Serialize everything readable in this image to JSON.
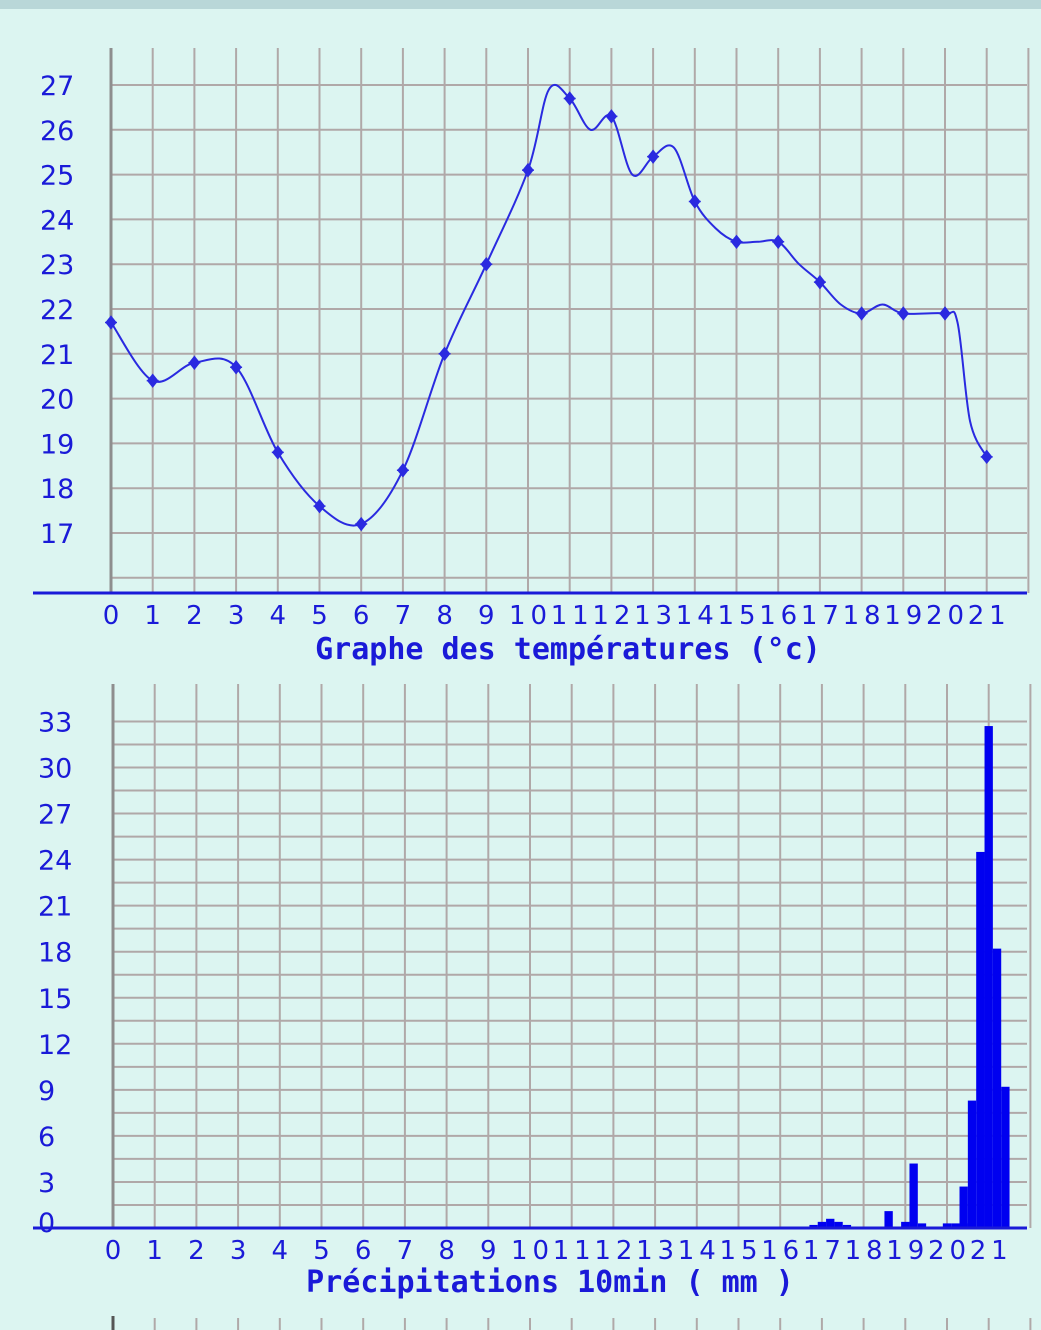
{
  "chart_data": [
    {
      "type": "line",
      "title": "Graphe des températures (°c)",
      "x_ticks": [
        "0",
        "1",
        "2",
        "3",
        "4",
        "5",
        "6",
        "7",
        "8",
        "9",
        "10",
        "11",
        "12",
        "13",
        "14",
        "15",
        "16",
        "17",
        "18",
        "19",
        "20",
        "21"
      ],
      "y_ticks": [
        "17",
        "18",
        "19",
        "20",
        "21",
        "22",
        "23",
        "24",
        "25",
        "26",
        "27"
      ],
      "ylim": [
        16,
        28
      ],
      "xlim": [
        0,
        22
      ],
      "grid": true,
      "series": [
        {
          "color": "#2a2ae0",
          "x": [
            0,
            1,
            2,
            3,
            4,
            5,
            6,
            7,
            8,
            9,
            10,
            10.5,
            11,
            11.5,
            12,
            12.5,
            13,
            13.5,
            14,
            14.5,
            15,
            15.5,
            16,
            16.5,
            17,
            17.5,
            18,
            18.5,
            19,
            20,
            20.3,
            20.6,
            21
          ],
          "y": [
            21.7,
            20.4,
            20.8,
            20.7,
            18.8,
            17.6,
            17.2,
            18.4,
            21.0,
            23.0,
            25.1,
            26.9,
            26.7,
            26.0,
            26.3,
            25.0,
            25.4,
            25.6,
            24.4,
            23.8,
            23.5,
            23.5,
            23.5,
            23.0,
            22.6,
            22.1,
            21.9,
            22.1,
            21.9,
            21.9,
            21.7,
            19.5,
            18.7
          ],
          "marker_x": [
            0,
            1,
            2,
            3,
            4,
            5,
            6,
            7,
            8,
            9,
            10,
            11,
            12,
            13,
            14,
            15,
            16,
            17,
            18,
            19,
            20,
            21
          ],
          "marker_y": [
            21.7,
            20.4,
            20.8,
            20.7,
            18.8,
            17.6,
            17.2,
            18.4,
            21.0,
            23.0,
            25.1,
            26.7,
            26.3,
            25.4,
            24.4,
            23.5,
            23.5,
            22.6,
            21.9,
            21.9,
            21.9,
            18.7
          ]
        }
      ]
    },
    {
      "type": "bar",
      "title": "Précipitations 10min ( mm )",
      "x_ticks": [
        "0",
        "1",
        "2",
        "3",
        "4",
        "5",
        "6",
        "7",
        "8",
        "9",
        "10",
        "11",
        "12",
        "13",
        "14",
        "15",
        "16",
        "17",
        "18",
        "19",
        "20",
        "21"
      ],
      "y_ticks": [
        "0",
        "3",
        "6",
        "9",
        "12",
        "15",
        "18",
        "21",
        "24",
        "27",
        "30",
        "33"
      ],
      "ylim": [
        0,
        34
      ],
      "xlim": [
        0,
        22
      ],
      "grid": true,
      "series": [
        {
          "color": "#0000f0",
          "x": [
            16.8,
            17.0,
            17.2,
            17.4,
            17.6,
            18.6,
            19.0,
            19.2,
            19.4,
            20.0,
            20.2,
            20.4,
            20.4,
            20.6,
            20.8,
            21.0,
            21.2
          ],
          "y": [
            0.2,
            0.4,
            0.6,
            0.4,
            0.2,
            1.1,
            0.4,
            4.2,
            0.3,
            0.3,
            0.3,
            0.3,
            2.7,
            8.3,
            24.5,
            32.7,
            18.2
          ]
        }
      ],
      "tail": {
        "x": 21.4,
        "y": 9.2
      }
    }
  ]
}
